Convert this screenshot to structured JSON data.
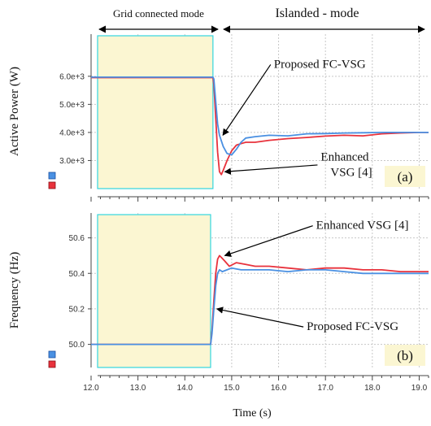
{
  "header": {
    "grid_mode_label": "Grid connected mode",
    "islanded_mode_label": "Islanded - mode"
  },
  "colors": {
    "proposed": "#4a90e2",
    "enhanced": "#e8323c",
    "highlight_fill": "#fbf6d2",
    "highlight_stroke": "#33d6e0",
    "grid": "#c8c8c8"
  },
  "chart_data": [
    {
      "type": "line",
      "panel_label": "(a)",
      "ylabel": "Active Power (W)",
      "xlim": [
        12.0,
        19.2
      ],
      "ylim": [
        2000,
        7500
      ],
      "xticks": [
        12.0,
        13.0,
        14.0,
        15.0,
        16.0,
        17.0,
        18.0,
        19.0
      ],
      "yticks": [
        3000,
        4000,
        5000,
        6000
      ],
      "ytick_labels": [
        "3.0e+3",
        "4.0e+3",
        "5.0e+3",
        "6.0e+3"
      ],
      "highlight_region": {
        "x_from": 12.0,
        "x_to": 14.6,
        "label": "Grid connected mode"
      },
      "series": [
        {
          "key": "enhanced",
          "x": [
            12.0,
            14.6,
            14.62,
            14.66,
            14.7,
            14.74,
            14.78,
            14.82,
            14.9,
            15.0,
            15.1,
            15.2,
            15.3,
            15.5,
            15.8,
            16.2,
            16.6,
            17.0,
            17.4,
            17.8,
            18.2,
            18.6,
            19.0,
            19.2
          ],
          "y": [
            5950,
            5950,
            5700,
            4500,
            3300,
            2600,
            2500,
            2650,
            3000,
            3350,
            3550,
            3600,
            3650,
            3650,
            3720,
            3780,
            3820,
            3870,
            3900,
            3880,
            3950,
            3980,
            4000,
            4000
          ]
        },
        {
          "key": "proposed",
          "x": [
            12.0,
            14.6,
            14.62,
            14.66,
            14.7,
            14.74,
            14.78,
            14.82,
            14.9,
            15.0,
            15.1,
            15.2,
            15.3,
            15.5,
            15.8,
            16.2,
            16.6,
            17.0,
            17.4,
            17.8,
            18.2,
            18.6,
            19.0,
            19.2
          ],
          "y": [
            5970,
            5970,
            5900,
            5100,
            4300,
            3900,
            3700,
            3500,
            3250,
            3200,
            3400,
            3650,
            3800,
            3850,
            3900,
            3880,
            3950,
            3960,
            3980,
            3990,
            4000,
            4000,
            4000,
            4000
          ]
        }
      ],
      "annotations": [
        {
          "text": "Proposed FC-VSG",
          "lines": [
            "Proposed FC-VSG"
          ],
          "target_x": 14.76,
          "target_y": 3900,
          "text_x": 15.9,
          "text_y": 6300
        },
        {
          "text": "Enhanced VSG [4]",
          "lines": [
            "Enhanced",
            "VSG [4]"
          ],
          "target_x": 14.8,
          "target_y": 2600,
          "text_x": 16.9,
          "text_y": 3000
        }
      ]
    },
    {
      "type": "line",
      "panel_label": "(b)",
      "xlabel": "Time (s)",
      "ylabel": "Frequency (Hz)",
      "xlim": [
        12.0,
        19.2
      ],
      "ylim": [
        49.87,
        50.74
      ],
      "xticks": [
        12.0,
        13.0,
        14.0,
        15.0,
        16.0,
        17.0,
        18.0,
        19.0
      ],
      "yticks": [
        50.0,
        50.2,
        50.4,
        50.6
      ],
      "ytick_labels": [
        "50.0",
        "50.2",
        "50.4",
        "50.6"
      ],
      "highlight_region": {
        "x_from": 12.0,
        "x_to": 14.55
      },
      "series": [
        {
          "key": "enhanced",
          "x": [
            12.0,
            14.55,
            14.58,
            14.62,
            14.66,
            14.7,
            14.74,
            14.78,
            14.85,
            14.95,
            15.1,
            15.3,
            15.5,
            15.8,
            16.2,
            16.6,
            17.0,
            17.4,
            17.8,
            18.2,
            18.6,
            19.0,
            19.2
          ],
          "y": [
            50.0,
            50.0,
            50.08,
            50.25,
            50.4,
            50.48,
            50.5,
            50.49,
            50.47,
            50.44,
            50.46,
            50.45,
            50.44,
            50.44,
            50.43,
            50.42,
            50.43,
            50.43,
            50.42,
            50.42,
            50.41,
            50.41,
            50.41
          ]
        },
        {
          "key": "proposed",
          "x": [
            12.0,
            14.55,
            14.58,
            14.62,
            14.66,
            14.7,
            14.74,
            14.8,
            14.9,
            15.0,
            15.2,
            15.5,
            15.8,
            16.2,
            16.6,
            17.0,
            17.4,
            17.8,
            18.2,
            18.6,
            19.0,
            19.2
          ],
          "y": [
            50.0,
            50.0,
            50.06,
            50.2,
            50.33,
            50.4,
            50.42,
            50.41,
            50.42,
            50.43,
            50.42,
            50.42,
            50.42,
            50.41,
            50.42,
            50.42,
            50.41,
            50.4,
            50.4,
            50.4,
            50.4,
            50.4
          ]
        }
      ],
      "annotations": [
        {
          "text": "Enhanced VSG [4]",
          "lines": [
            "Enhanced VSG [4]"
          ],
          "target_x": 14.8,
          "target_y": 50.5,
          "text_x": 16.8,
          "text_y": 50.65
        },
        {
          "text": "Proposed FC-VSG",
          "lines": [
            "Proposed FC-VSG"
          ],
          "target_x": 14.63,
          "target_y": 50.2,
          "text_x": 16.6,
          "text_y": 50.08
        }
      ]
    }
  ]
}
